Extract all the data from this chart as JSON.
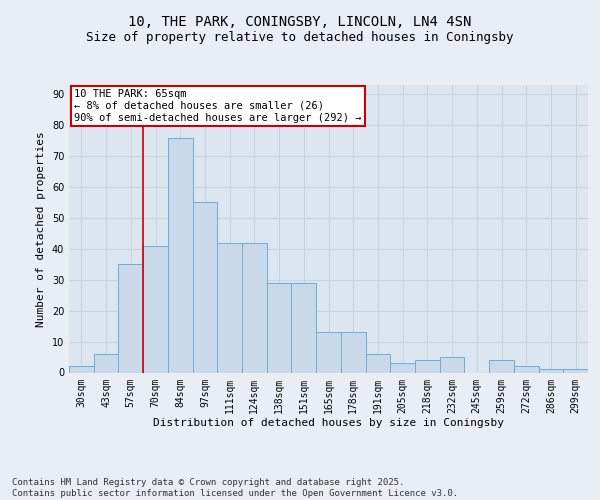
{
  "title1": "10, THE PARK, CONINGSBY, LINCOLN, LN4 4SN",
  "title2": "Size of property relative to detached houses in Coningsby",
  "xlabel": "Distribution of detached houses by size in Coningsby",
  "ylabel": "Number of detached properties",
  "categories": [
    "30sqm",
    "43sqm",
    "57sqm",
    "70sqm",
    "84sqm",
    "97sqm",
    "111sqm",
    "124sqm",
    "138sqm",
    "151sqm",
    "165sqm",
    "178sqm",
    "191sqm",
    "205sqm",
    "218sqm",
    "232sqm",
    "245sqm",
    "259sqm",
    "272sqm",
    "286sqm",
    "299sqm"
  ],
  "bar_heights": [
    2,
    6,
    35,
    41,
    76,
    55,
    42,
    42,
    29,
    29,
    13,
    13,
    6,
    3,
    4,
    5,
    0,
    4,
    2,
    1,
    1
  ],
  "bar_color": "#c9d9ea",
  "bar_edge_color": "#6baed6",
  "red_line_x": 2.5,
  "annotation_text": "10 THE PARK: 65sqm\n← 8% of detached houses are smaller (26)\n90% of semi-detached houses are larger (292) →",
  "annotation_box_color": "#ffffff",
  "annotation_border_color": "#cc0000",
  "ylim": [
    0,
    93
  ],
  "yticks": [
    0,
    10,
    20,
    30,
    40,
    50,
    60,
    70,
    80,
    90
  ],
  "background_color": "#e8eef4",
  "plot_bg_color": "#dce6f0",
  "grid_color": "#c8d4e0",
  "footer": "Contains HM Land Registry data © Crown copyright and database right 2025.\nContains public sector information licensed under the Open Government Licence v3.0.",
  "title_fontsize": 10,
  "subtitle_fontsize": 9,
  "axis_label_fontsize": 8,
  "tick_fontsize": 7,
  "footer_fontsize": 6.5
}
